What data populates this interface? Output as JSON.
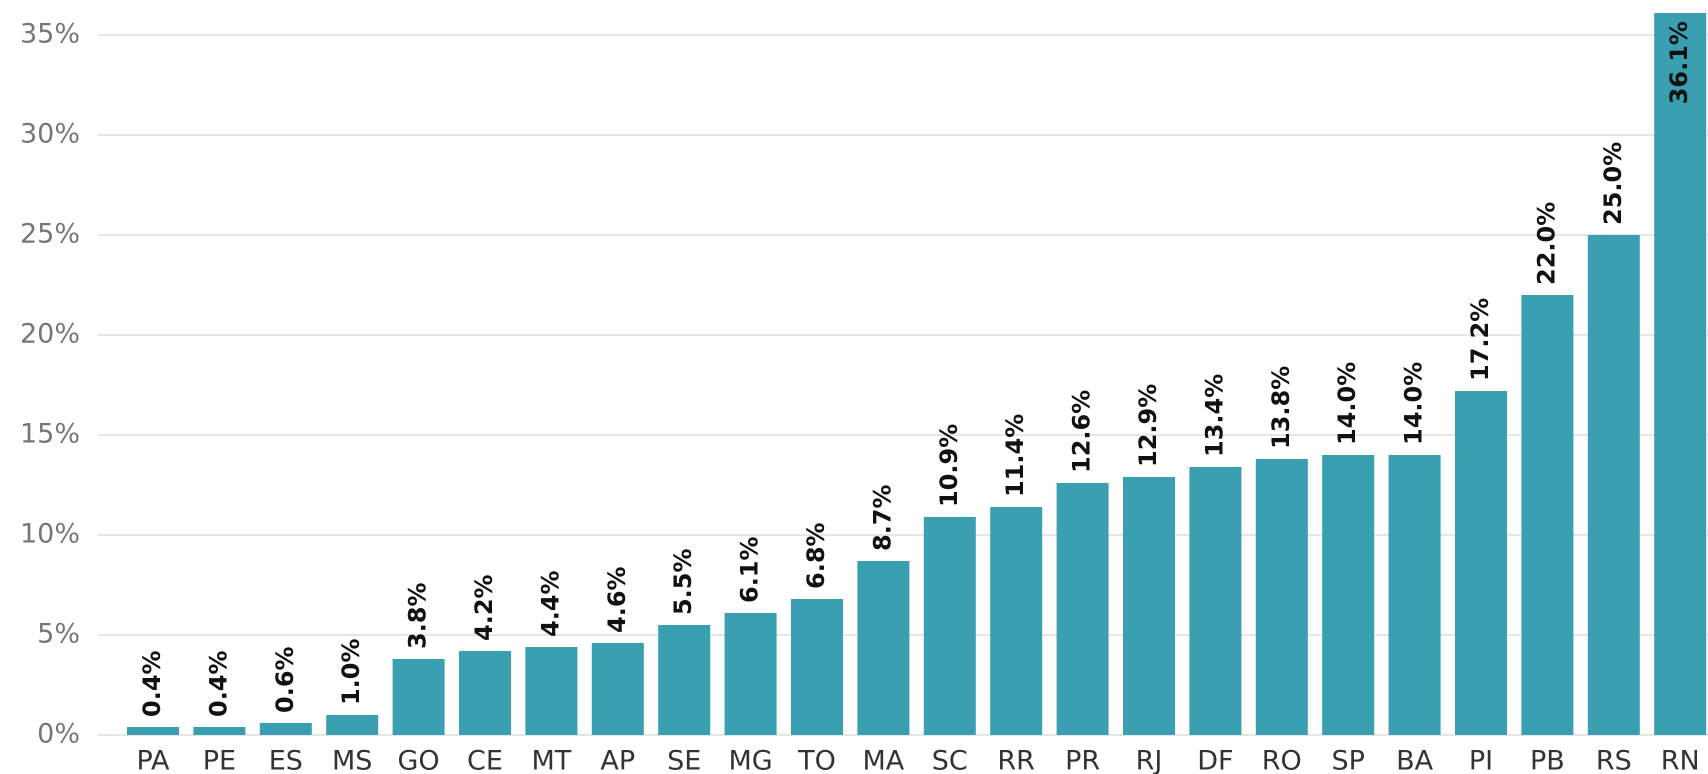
{
  "chart_data": {
    "type": "bar",
    "categories": [
      "PA",
      "PE",
      "ES",
      "MS",
      "GO",
      "CE",
      "MT",
      "AP",
      "SE",
      "MG",
      "TO",
      "MA",
      "SC",
      "RR",
      "PR",
      "RJ",
      "DF",
      "RO",
      "SP",
      "BA",
      "PI",
      "PB",
      "RS",
      "RN"
    ],
    "values": [
      0.4,
      0.4,
      0.6,
      1.0,
      3.8,
      4.2,
      4.4,
      4.6,
      5.5,
      6.1,
      6.8,
      8.7,
      10.9,
      11.4,
      12.6,
      12.9,
      13.4,
      13.8,
      14.0,
      14.0,
      17.2,
      22.0,
      25.0,
      36.1
    ],
    "value_labels": [
      "0.4%",
      "0.4%",
      "0.6%",
      "1.0%",
      "3.8%",
      "4.2%",
      "4.4%",
      "4.6%",
      "5.5%",
      "6.1%",
      "6.8%",
      "8.7%",
      "10.9%",
      "11.4%",
      "12.6%",
      "12.9%",
      "13.4%",
      "13.8%",
      "14.0%",
      "14.0%",
      "17.2%",
      "22.0%",
      "25.0%",
      "36.1%"
    ],
    "color": "#3a9fb0",
    "ylim": [
      0,
      35
    ],
    "yticks": [
      {
        "value": 0,
        "label": "0%"
      },
      {
        "value": 5,
        "label": "5%"
      },
      {
        "value": 10,
        "label": "10%"
      },
      {
        "value": 15,
        "label": "15%"
      },
      {
        "value": 20,
        "label": "20%"
      },
      {
        "value": 25,
        "label": "25%"
      },
      {
        "value": 30,
        "label": "30%"
      },
      {
        "value": 35,
        "label": "35%"
      }
    ],
    "grid": true
  }
}
